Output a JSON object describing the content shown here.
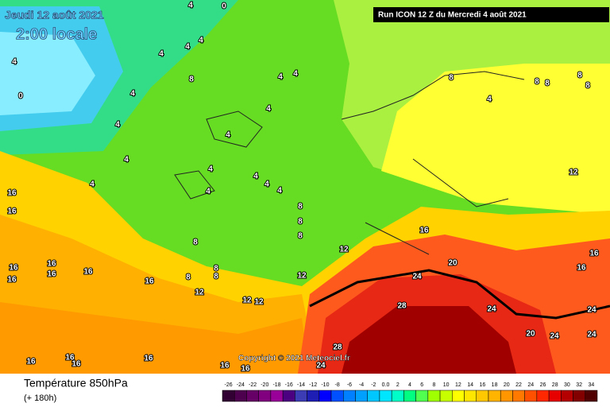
{
  "header": {
    "date": "Jeudi 12 août 2021",
    "time": "2:00 locale",
    "run": "Run ICON 12 Z du Mercredi 4 août 2021"
  },
  "copyright": "Copyright © 2021 Meteociel.fr",
  "contour_labels": [
    4,
    0,
    4,
    0,
    4,
    4,
    4,
    8,
    4,
    4,
    4,
    4,
    4,
    4,
    4,
    4,
    4,
    4,
    4,
    4,
    4,
    8,
    8,
    8,
    8,
    8,
    4,
    12,
    16,
    16,
    8,
    8,
    8,
    8,
    12,
    16,
    20,
    24,
    16,
    16,
    16,
    16,
    16,
    16,
    16,
    16,
    8,
    8,
    8,
    12,
    12,
    12,
    12,
    28,
    24,
    20,
    24,
    24,
    24,
    28,
    24,
    16,
    16,
    16,
    16,
    16,
    16
  ],
  "legend": {
    "title": "Température 850hPa",
    "subtitle": "(+ 180h)",
    "ticks": [
      -26,
      -24,
      -22,
      -20,
      -18,
      -16,
      -14,
      -12,
      -10,
      -8,
      -6,
      -4,
      -2,
      {
        "value": 0,
        "label": "0.0"
      },
      2,
      4,
      6,
      8,
      10,
      12,
      14,
      16,
      18,
      20,
      22,
      24,
      26,
      28,
      30,
      32,
      34
    ],
    "colors": [
      "#330033",
      "#4d004d",
      "#660066",
      "#800080",
      "#990099",
      "#4b0082",
      "#3c3cb4",
      "#1e1eb4",
      "#0000ff",
      "#0050ff",
      "#0080ff",
      "#00a0ff",
      "#00c8ff",
      "#00e6ff",
      "#00ffc8",
      "#00ff80",
      "#50ff50",
      "#a0ff00",
      "#c8ff00",
      "#ffff00",
      "#ffe600",
      "#ffc800",
      "#ffb400",
      "#ff9600",
      "#ff7800",
      "#ff5000",
      "#ff2800",
      "#e60000",
      "#b40000",
      "#820000",
      "#500000"
    ]
  }
}
